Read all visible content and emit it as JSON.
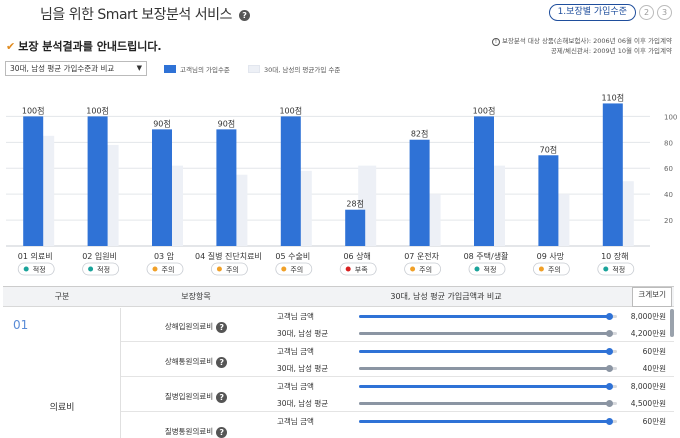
{
  "header": {
    "title": "님을 위한 Smart 보장분석 서비스",
    "steps": [
      "1.보장별 가입수준",
      "2",
      "3"
    ]
  },
  "summary": {
    "title": "보장 분석결과를 안내드립니다.",
    "notes": [
      "보장분석 대상 상품(손해보험사): 2006년 06월 이후 가입계약",
      "공제/체신관서: 2009년 10월 이후 가입계약"
    ],
    "compare_select": "30대, 남성 평균 가입수준과 비교",
    "legend_customer": "고객님의 가입수준",
    "legend_average": "30대, 남성의 평균가입 수준"
  },
  "colors": {
    "customer_bar": "#2f72d6",
    "average_bar": "#edf0f6",
    "status_good": "#1aa39a",
    "status_warn": "#f0a028",
    "status_bad": "#d81f1f",
    "track_customer": "#2f72d6",
    "track_average": "#8b95a3"
  },
  "chart_data": {
    "type": "bar",
    "categories": [
      "01 의료비",
      "02 입원비",
      "03 암",
      "04 질병 진단치료비",
      "05 수술비",
      "06 상해",
      "07 운전자",
      "08 주택/생활",
      "09 사망",
      "10 장해"
    ],
    "series": [
      {
        "name": "고객님의 가입수준",
        "values": [
          100,
          100,
          90,
          90,
          100,
          28,
          82,
          100,
          70,
          110
        ],
        "labels": [
          "100점",
          "100점",
          "90점",
          "90점",
          "100점",
          "28점",
          "82점",
          "100점",
          "70점",
          "110점"
        ]
      },
      {
        "name": "30대, 남성의 평균가입 수준",
        "values": [
          85,
          78,
          62,
          55,
          58,
          62,
          40,
          62,
          40,
          50
        ]
      }
    ],
    "y_ticks": [
      "100",
      "80",
      "60",
      "40",
      "20"
    ],
    "ylim": [
      0,
      125
    ],
    "status": [
      {
        "label": "적정",
        "kind": "good"
      },
      {
        "label": "적정",
        "kind": "good"
      },
      {
        "label": "주의",
        "kind": "warn"
      },
      {
        "label": "주의",
        "kind": "warn"
      },
      {
        "label": "주의",
        "kind": "warn"
      },
      {
        "label": "부족",
        "kind": "bad"
      },
      {
        "label": "주의",
        "kind": "warn"
      },
      {
        "label": "적정",
        "kind": "good"
      },
      {
        "label": "주의",
        "kind": "warn"
      },
      {
        "label": "적정",
        "kind": "good"
      }
    ]
  },
  "table": {
    "headers": {
      "category": "구분",
      "item": "보장항목",
      "compare": "30대, 남성 평균 가입금액과 비교",
      "enlarge": "크게보기"
    },
    "category_number": "01",
    "category_name": "의료비",
    "rows": [
      {
        "name": "상해입원의료비",
        "customer_label": "고객님 금액",
        "customer_amount": "8,000만원",
        "customer_fill": 0.97,
        "average_label": "30대, 남성 평균",
        "average_amount": "4,200만원",
        "average_fill": 0.97
      },
      {
        "name": "상해통원의료비",
        "customer_label": "고객님 금액",
        "customer_amount": "60만원",
        "customer_fill": 0.97,
        "average_label": "30대, 남성 평균",
        "average_amount": "40만원",
        "average_fill": 0.97
      },
      {
        "name": "질병입원의료비",
        "customer_label": "고객님 금액",
        "customer_amount": "8,000만원",
        "customer_fill": 0.97,
        "average_label": "30대, 남성 평균",
        "average_amount": "4,500만원",
        "average_fill": 0.97
      },
      {
        "name": "질병통원의료비",
        "customer_label": "고객님 금액",
        "customer_amount": "60만원",
        "customer_fill": 0.97
      }
    ]
  }
}
